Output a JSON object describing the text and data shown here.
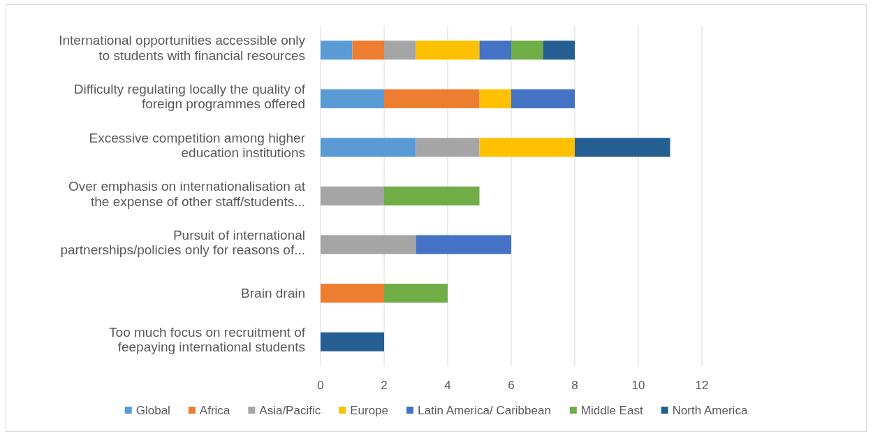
{
  "chart_data": {
    "type": "bar",
    "orientation": "horizontal",
    "stacked": true,
    "categories": [
      "International opportunities accessible only to students with financial resources",
      "Difficulty regulating locally the quality of foreign programmes offered",
      "Excessive competition among higher education institutions",
      "Over emphasis on internationalisation at the expense of other staff/students...",
      "Pursuit of international partnerships/policies only for reasons of...",
      "Brain drain",
      "Too much focus on recruitment of feepaying international students"
    ],
    "series": [
      {
        "name": "Global",
        "color": "#5b9bd5",
        "values": [
          1,
          2,
          3,
          null,
          null,
          null,
          null
        ]
      },
      {
        "name": "Africa",
        "color": "#ed7d31",
        "values": [
          1,
          3,
          null,
          null,
          null,
          2,
          null
        ]
      },
      {
        "name": "Asia/Pacific",
        "color": "#a5a5a5",
        "values": [
          1,
          null,
          2,
          2,
          3,
          null,
          null
        ]
      },
      {
        "name": "Europe",
        "color": "#ffc000",
        "values": [
          2,
          1,
          3,
          null,
          null,
          null,
          null
        ]
      },
      {
        "name": "Latin America/ Caribbean",
        "color": "#4472c4",
        "values": [
          1,
          2,
          null,
          null,
          3,
          null,
          null
        ]
      },
      {
        "name": "Middle East",
        "color": "#70ad47",
        "values": [
          1,
          null,
          null,
          3,
          null,
          2,
          null
        ]
      },
      {
        "name": "North America",
        "color": "#255e91",
        "values": [
          1,
          null,
          3,
          null,
          null,
          null,
          2
        ]
      }
    ],
    "xlim": [
      0,
      12
    ],
    "xticks": [
      0,
      2,
      4,
      6,
      8,
      10,
      12
    ],
    "grid": "x",
    "legend": "bottom"
  }
}
